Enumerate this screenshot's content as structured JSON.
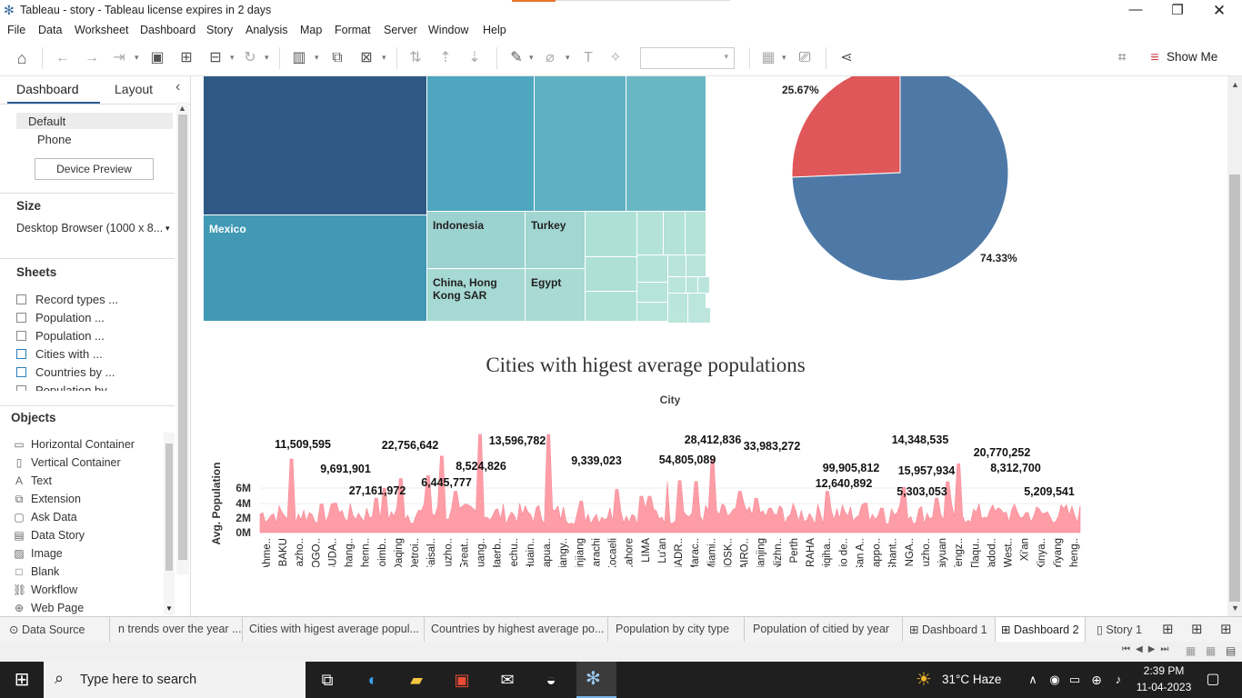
{
  "window": {
    "title": "Tableau - story - Tableau license expires in 2 days"
  },
  "menu": [
    "File",
    "Data",
    "Worksheet",
    "Dashboard",
    "Story",
    "Analysis",
    "Map",
    "Format",
    "Server",
    "Window",
    "Help"
  ],
  "toolbar": {
    "show_me": "Show Me"
  },
  "leftpane": {
    "tabs": [
      "Dashboard",
      "Layout"
    ],
    "devices": [
      "Default",
      "Phone"
    ],
    "device_preview": "Device Preview",
    "size_title": "Size",
    "size_value": "Desktop Browser (1000 x 8...",
    "sheets_title": "Sheets",
    "sheets": [
      "Record types ...",
      "Population ...",
      "Population ...",
      "Cities with ...",
      "Countries by ...",
      "Population by"
    ],
    "objects_title": "Objects",
    "objects": [
      {
        "label": "Horizontal Container",
        "icon": "horizontal-container-icon",
        "glyph": "▭"
      },
      {
        "label": "Vertical Container",
        "icon": "vertical-container-icon",
        "glyph": "▯"
      },
      {
        "label": "Text",
        "icon": "text-icon",
        "glyph": "A"
      },
      {
        "label": "Extension",
        "icon": "extension-icon",
        "glyph": "⧉"
      },
      {
        "label": "Ask Data",
        "icon": "ask-data-icon",
        "glyph": "▢"
      },
      {
        "label": "Data Story",
        "icon": "data-story-icon",
        "glyph": "▤"
      },
      {
        "label": "Image",
        "icon": "image-icon",
        "glyph": "▨"
      },
      {
        "label": "Blank",
        "icon": "blank-icon",
        "glyph": "□"
      },
      {
        "label": "Workflow",
        "icon": "workflow-icon",
        "glyph": "⛓"
      },
      {
        "label": "Web Page",
        "icon": "web-page-icon",
        "glyph": "⊕"
      }
    ]
  },
  "treemap": {
    "labels": [
      "Mexico",
      "Indonesia",
      "Turkey",
      "China, Hong Kong SAR",
      "Egypt"
    ],
    "colors": {
      "dark": "#2e5985",
      "mid": "#3d9ab7",
      "light": "#a6d9d2"
    }
  },
  "pie": {
    "slices": [
      {
        "label": "25.67%",
        "value": 25.67,
        "color": "#e05759"
      },
      {
        "label": "74.33%",
        "value": 74.33,
        "color": "#4e79a7"
      }
    ]
  },
  "area_chart": {
    "title": "Cities with higest average populations",
    "header": "City",
    "ylabel": "Avg. Population",
    "yticks": [
      "0M",
      "2M",
      "4M",
      "6M"
    ],
    "color": "#ff9da7",
    "data_labels": [
      "11,509,595",
      "9,691,901",
      "27,161,972",
      "22,756,642",
      "6,445,777",
      "8,524,826",
      "13,596,782",
      "9,339,023",
      "54,805,089",
      "28,412,836",
      "33,983,272",
      "99,905,812",
      "12,640,892",
      "14,348,535",
      "15,957,934",
      "5,303,053",
      "20,770,252",
      "8,312,700",
      "5,209,541"
    ],
    "categories": [
      "Ahme..",
      "BAKU",
      "Bazho..",
      "BOGO..",
      "BUDA..",
      "Chang..",
      "Chenn..",
      "Coimb..",
      "Daqing",
      "Detroi..",
      "Faisal..",
      "Fuzho..",
      "Great..",
      "Guang..",
      "Haerb..",
      "Hechu..",
      "Huain..",
      "Irapua..",
      "Jiangy..",
      "Jinjiang",
      "Karachi",
      "Kocaeli",
      "Lahore",
      "LIMA",
      "Lu'an",
      "MADR..",
      "Marac..",
      "Miami..",
      "MOSK..",
      "NAIRO..",
      "Nanjing",
      "Nizhn..",
      "Perth",
      "PRAHA",
      "Qiqiha..",
      "Rio de..",
      "San A..",
      "Sappo..",
      "Shant..",
      "SINGA..",
      "Suzho..",
      "Taiyuan",
      "Tengz..",
      "Tlaqu..",
      "Vadod..",
      "West..",
      "Xi'an",
      "Xinya..",
      "Yiyang",
      "Zheng.."
    ]
  },
  "bottom_tabs": {
    "data_source": "Data Source",
    "sheets": [
      "n trends over the year ...",
      "Cities with higest average popul...",
      "Countries by highest average po...",
      "Population by  city type",
      "Population of citied by year"
    ],
    "dashboards": [
      "Dashboard 1",
      "Dashboard 2"
    ],
    "story": "Story 1"
  },
  "taskbar": {
    "search_placeholder": "Type here to search",
    "weather": "31°C  Haze",
    "time": "2:39 PM",
    "date": "11-04-2023"
  }
}
